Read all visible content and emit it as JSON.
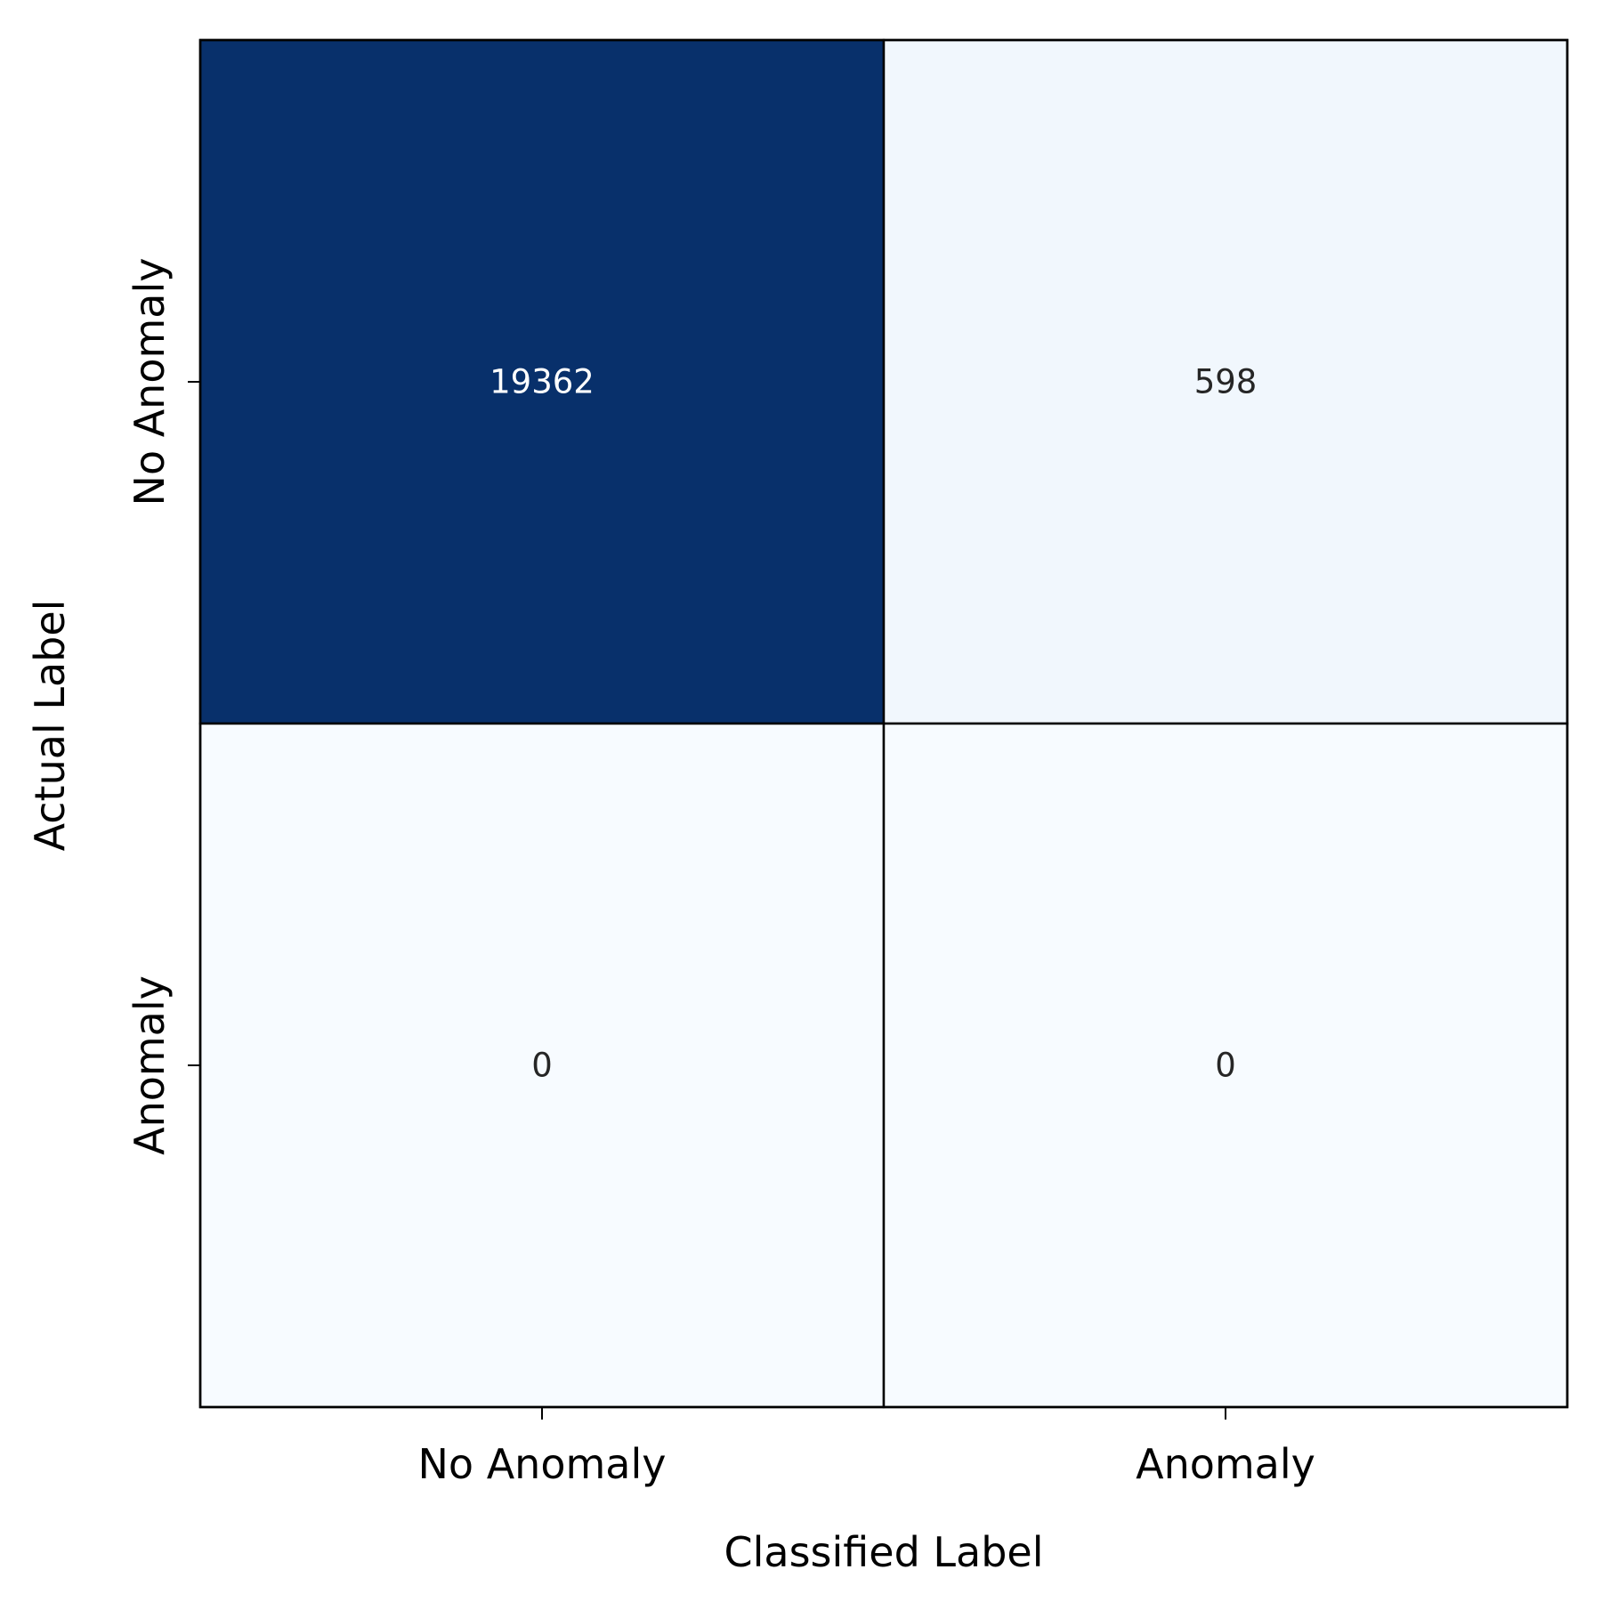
{
  "chart_data": {
    "type": "heatmap",
    "title": "",
    "xlabel": "Classified Label",
    "ylabel": "Actual Label",
    "x_categories": [
      "No Anomaly",
      "Anomaly"
    ],
    "y_categories": [
      "No Anomaly",
      "Anomaly"
    ],
    "values": [
      [
        19362,
        598
      ],
      [
        0,
        0
      ]
    ],
    "value_labels": [
      [
        "19362",
        "598"
      ],
      [
        "0",
        "0"
      ]
    ],
    "colormap": "Blues",
    "colorbar": false,
    "grid": false,
    "colors": {
      "max": "#08306b",
      "min": "#f7fbff",
      "text_dark": "#262626",
      "text_light": "#ffffff",
      "cell_border": "#000000"
    }
  }
}
